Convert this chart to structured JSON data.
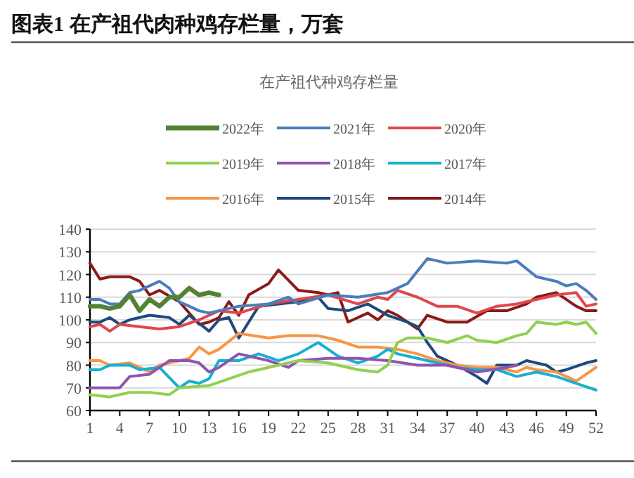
{
  "chart_data": {
    "type": "line",
    "title": "图表1 在产祖代肉种鸡存栏量，万套",
    "subtitle": "在产祖代种鸡存栏量",
    "xlim": [
      1,
      52
    ],
    "xticks": [
      1,
      4,
      7,
      10,
      13,
      16,
      19,
      22,
      25,
      28,
      31,
      34,
      37,
      40,
      43,
      46,
      49,
      52
    ],
    "ylim": [
      60,
      140
    ],
    "yticks": [
      60,
      70,
      80,
      90,
      100,
      110,
      120,
      130,
      140
    ],
    "grid": "y",
    "legend": "top",
    "marker": "none",
    "line_style": "solid",
    "series": [
      {
        "name": "2022年",
        "color": "#548235",
        "x": [
          1,
          2,
          3,
          4,
          5,
          6,
          7,
          8,
          9,
          10,
          11,
          12,
          13,
          14
        ],
        "values": [
          106,
          106,
          105,
          106,
          111,
          104,
          109,
          106,
          110,
          110,
          114,
          111,
          112,
          111
        ]
      },
      {
        "name": "2021年",
        "color": "#4a7ebb",
        "x": [
          1,
          2,
          3,
          4,
          5,
          6,
          7,
          8,
          9,
          10,
          11,
          12,
          13,
          14,
          16,
          19,
          21,
          22,
          25,
          28,
          31,
          33,
          35,
          37,
          40,
          43,
          44,
          46,
          48,
          49,
          50,
          51,
          52
        ],
        "values": [
          109,
          109,
          107,
          107,
          112,
          113,
          115,
          117,
          114,
          108,
          106,
          104,
          103,
          104,
          106,
          107,
          110,
          107,
          111,
          110,
          112,
          116,
          127,
          125,
          126,
          125,
          126,
          119,
          117,
          115,
          116,
          113,
          109
        ]
      },
      {
        "name": "2020年",
        "color": "#e0474c",
        "x": [
          1,
          2,
          3,
          4,
          6,
          8,
          10,
          12,
          14,
          16,
          19,
          22,
          25,
          28,
          30,
          31,
          32,
          34,
          36,
          38,
          40,
          42,
          44,
          46,
          48,
          50,
          51,
          52
        ],
        "values": [
          97,
          98,
          95,
          98,
          97,
          96,
          97,
          100,
          104,
          103,
          107,
          109,
          111,
          107,
          110,
          109,
          113,
          110,
          106,
          106,
          103,
          106,
          107,
          109,
          111,
          112,
          106,
          107
        ]
      },
      {
        "name": "2019年",
        "color": "#92d050",
        "x": [
          1,
          3,
          5,
          7,
          9,
          10,
          13,
          15,
          17,
          19,
          22,
          25,
          28,
          30,
          31,
          32,
          33,
          35,
          37,
          39,
          40,
          42,
          44,
          45,
          46,
          48,
          49,
          50,
          51,
          52
        ],
        "values": [
          67,
          66,
          68,
          68,
          67,
          70,
          71,
          74,
          77,
          79,
          82,
          81,
          78,
          77,
          80,
          90,
          92,
          92,
          90,
          93,
          91,
          90,
          93,
          94,
          99,
          98,
          99,
          98,
          99,
          94
        ]
      },
      {
        "name": "2018年",
        "color": "#8e55b0",
        "x": [
          1,
          4,
          5,
          7,
          9,
          11,
          12,
          13,
          14,
          16,
          19,
          21,
          22,
          25,
          28,
          31,
          34,
          37,
          40,
          43,
          44
        ],
        "values": [
          70,
          70,
          75,
          76,
          82,
          82,
          81,
          77,
          79,
          85,
          82,
          79,
          82,
          83,
          83,
          82,
          80,
          80,
          77,
          79,
          80
        ]
      },
      {
        "name": "2017年",
        "color": "#17b0d0",
        "x": [
          1,
          2,
          3,
          5,
          6,
          8,
          10,
          11,
          12,
          13,
          14,
          16,
          18,
          20,
          22,
          24,
          25,
          26,
          28,
          30,
          31,
          32,
          34,
          35,
          38,
          40,
          42,
          44,
          46,
          48,
          50,
          52
        ],
        "values": [
          78,
          78,
          80,
          80,
          78,
          79,
          70,
          73,
          72,
          74,
          82,
          82,
          85,
          82,
          85,
          90,
          87,
          84,
          81,
          84,
          87,
          85,
          83,
          82,
          79,
          78,
          78,
          75,
          77,
          75,
          72,
          69
        ]
      },
      {
        "name": "2016年",
        "color": "#f79646",
        "x": [
          1,
          2,
          3,
          5,
          7,
          8,
          10,
          11,
          12,
          13,
          14,
          16,
          19,
          21,
          24,
          26,
          28,
          30,
          32,
          34,
          36,
          38,
          40,
          42,
          44,
          45,
          46,
          48,
          50,
          52
        ],
        "values": [
          82,
          82,
          80,
          81,
          77,
          80,
          82,
          83,
          88,
          85,
          87,
          94,
          92,
          93,
          93,
          91,
          88,
          88,
          87,
          85,
          82,
          80,
          79,
          79,
          77,
          79,
          78,
          77,
          73,
          79
        ]
      },
      {
        "name": "2015年",
        "color": "#1f497d",
        "x": [
          1,
          2,
          3,
          4,
          5,
          6,
          7,
          9,
          10,
          11,
          13,
          14,
          15,
          16,
          18,
          20,
          22,
          24,
          25,
          27,
          29,
          31,
          33,
          34,
          35,
          36,
          38,
          40,
          41,
          42,
          44,
          45,
          47,
          48,
          49,
          51,
          52
        ],
        "values": [
          99,
          99,
          101,
          98,
          100,
          101,
          102,
          101,
          98,
          102,
          95,
          100,
          101,
          92,
          106,
          107,
          108,
          110,
          105,
          104,
          107,
          102,
          99,
          97,
          90,
          84,
          80,
          75,
          72,
          80,
          80,
          82,
          80,
          77,
          78,
          81,
          82
        ]
      },
      {
        "name": "2014年",
        "color": "#8b1a1a",
        "x": [
          1,
          2,
          3,
          4,
          5,
          6,
          7,
          8,
          10,
          12,
          13,
          14,
          15,
          16,
          17,
          19,
          20,
          22,
          24,
          25,
          26,
          27,
          29,
          30,
          31,
          32,
          34,
          35,
          37,
          39,
          41,
          43,
          45,
          46,
          48,
          50,
          51,
          52
        ],
        "values": [
          125,
          118,
          119,
          119,
          119,
          117,
          111,
          113,
          108,
          98,
          99,
          101,
          108,
          102,
          111,
          116,
          122,
          113,
          112,
          111,
          112,
          99,
          103,
          100,
          104,
          102,
          96,
          102,
          99,
          99,
          104,
          104,
          107,
          110,
          112,
          106,
          104,
          104
        ]
      }
    ]
  }
}
